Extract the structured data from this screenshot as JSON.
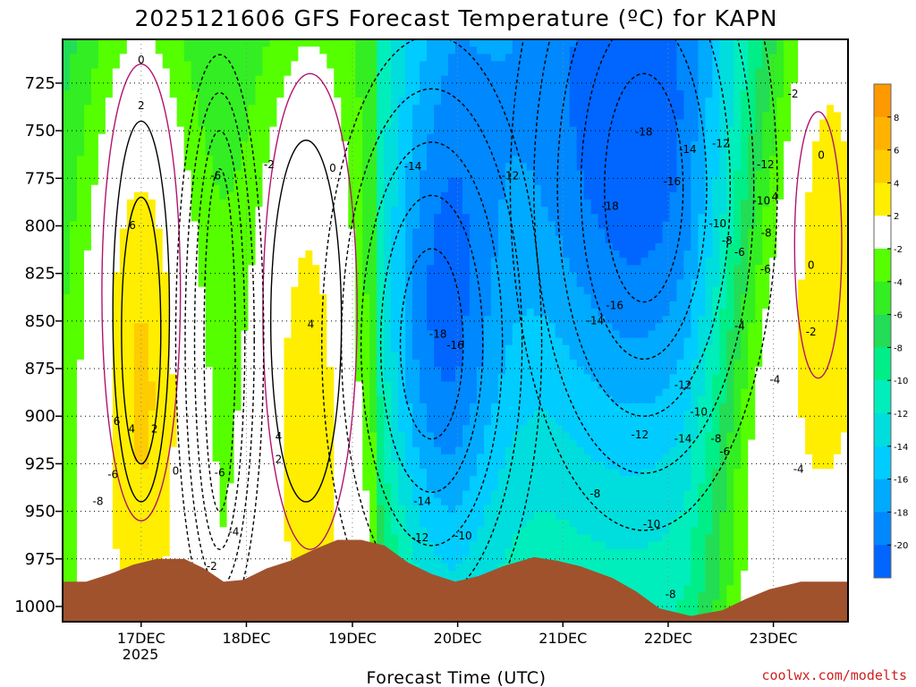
{
  "chart_data": {
    "type": "heatmap",
    "title": "2025121606 GFS Forecast Temperature (ºC) for KAPN",
    "xlabel": "Forecast Time (UTC)",
    "ylabel": "",
    "credit": "coolwx.com/modelts",
    "y_ticks": [
      "725",
      "750",
      "775",
      "800",
      "825",
      "850",
      "875",
      "900",
      "925",
      "950",
      "975",
      "1000"
    ],
    "ylim": [
      1008,
      702
    ],
    "x_ticks": [
      "17DEC",
      "18DEC",
      "19DEC",
      "20DEC",
      "21DEC",
      "22DEC",
      "23DEC"
    ],
    "x_year": "2025",
    "colorbar": {
      "ticks": [
        "8",
        "6",
        "4",
        "2",
        "-2",
        "-4",
        "-6",
        "-8",
        "-10",
        "-12",
        "-14",
        "-16",
        "-18",
        "-20"
      ],
      "colors": [
        "#ff9900",
        "#ffb300",
        "#ffcc00",
        "#ffee00",
        "#ffffff",
        "#55ff00",
        "#33ee22",
        "#22dd55",
        "#00ee88",
        "#00eebb",
        "#00dddd",
        "#00ccff",
        "#00aaff",
        "#0088ff",
        "#0066ff"
      ]
    },
    "contour_labels": [
      {
        "t": "0",
        "x": 0.1,
        "p": 713
      },
      {
        "t": "2",
        "x": 0.1,
        "p": 737
      },
      {
        "t": "6",
        "x": 0.089,
        "p": 800
      },
      {
        "t": "6",
        "x": 0.069,
        "p": 903
      },
      {
        "t": "4",
        "x": 0.088,
        "p": 907
      },
      {
        "t": "2",
        "x": 0.117,
        "p": 907
      },
      {
        "t": "-6",
        "x": 0.064,
        "p": 931
      },
      {
        "t": "-8",
        "x": 0.045,
        "p": 945
      },
      {
        "t": "0",
        "x": 0.144,
        "p": 929
      },
      {
        "t": "-6",
        "x": 0.2,
        "p": 930
      },
      {
        "t": "-2",
        "x": 0.19,
        "p": 979
      },
      {
        "t": "-4",
        "x": 0.218,
        "p": 961
      },
      {
        "t": "-6",
        "x": 0.195,
        "p": 774
      },
      {
        "t": "-2",
        "x": 0.263,
        "p": 768
      },
      {
        "t": "0",
        "x": 0.344,
        "p": 770
      },
      {
        "t": "4",
        "x": 0.316,
        "p": 852
      },
      {
        "t": "4",
        "x": 0.275,
        "p": 911
      },
      {
        "t": "2",
        "x": 0.275,
        "p": 923
      },
      {
        "t": "-14",
        "x": 0.446,
        "p": 769
      },
      {
        "t": "-12",
        "x": 0.57,
        "p": 774
      },
      {
        "t": "-18",
        "x": 0.478,
        "p": 857
      },
      {
        "t": "-16",
        "x": 0.5,
        "p": 863
      },
      {
        "t": "-14",
        "x": 0.458,
        "p": 945
      },
      {
        "t": "-12",
        "x": 0.455,
        "p": 964
      },
      {
        "t": "-10",
        "x": 0.51,
        "p": 963
      },
      {
        "t": "-18",
        "x": 0.74,
        "p": 751
      },
      {
        "t": "-14",
        "x": 0.796,
        "p": 760
      },
      {
        "t": "-12",
        "x": 0.838,
        "p": 757
      },
      {
        "t": "-16",
        "x": 0.776,
        "p": 777
      },
      {
        "t": "-18",
        "x": 0.697,
        "p": 790
      },
      {
        "t": "-12",
        "x": 0.895,
        "p": 768
      },
      {
        "t": "-10",
        "x": 0.89,
        "p": 787
      },
      {
        "t": "-10",
        "x": 0.834,
        "p": 799
      },
      {
        "t": "-8",
        "x": 0.846,
        "p": 808
      },
      {
        "t": "-6",
        "x": 0.862,
        "p": 814
      },
      {
        "t": "-8",
        "x": 0.896,
        "p": 804
      },
      {
        "t": "-6",
        "x": 0.895,
        "p": 823
      },
      {
        "t": "-16",
        "x": 0.703,
        "p": 842
      },
      {
        "t": "-14",
        "x": 0.678,
        "p": 850
      },
      {
        "t": "-4",
        "x": 0.862,
        "p": 853
      },
      {
        "t": "-12",
        "x": 0.79,
        "p": 884
      },
      {
        "t": "-10",
        "x": 0.81,
        "p": 898
      },
      {
        "t": "-12",
        "x": 0.735,
        "p": 910
      },
      {
        "t": "-14",
        "x": 0.79,
        "p": 912
      },
      {
        "t": "-8",
        "x": 0.832,
        "p": 912
      },
      {
        "t": "-6",
        "x": 0.843,
        "p": 919
      },
      {
        "t": "-4",
        "x": 0.907,
        "p": 881
      },
      {
        "t": "-8",
        "x": 0.678,
        "p": 941
      },
      {
        "t": "-10",
        "x": 0.75,
        "p": 957
      },
      {
        "t": "-8",
        "x": 0.774,
        "p": 994
      },
      {
        "t": "-4",
        "x": 0.937,
        "p": 928
      },
      {
        "t": "-2",
        "x": 0.93,
        "p": 731
      },
      {
        "t": "0",
        "x": 0.966,
        "p": 763
      },
      {
        "t": "0",
        "x": 0.953,
        "p": 821
      },
      {
        "t": "-2",
        "x": 0.953,
        "p": 856
      },
      {
        "t": "4",
        "x": 0.907,
        "p": 785
      }
    ]
  }
}
